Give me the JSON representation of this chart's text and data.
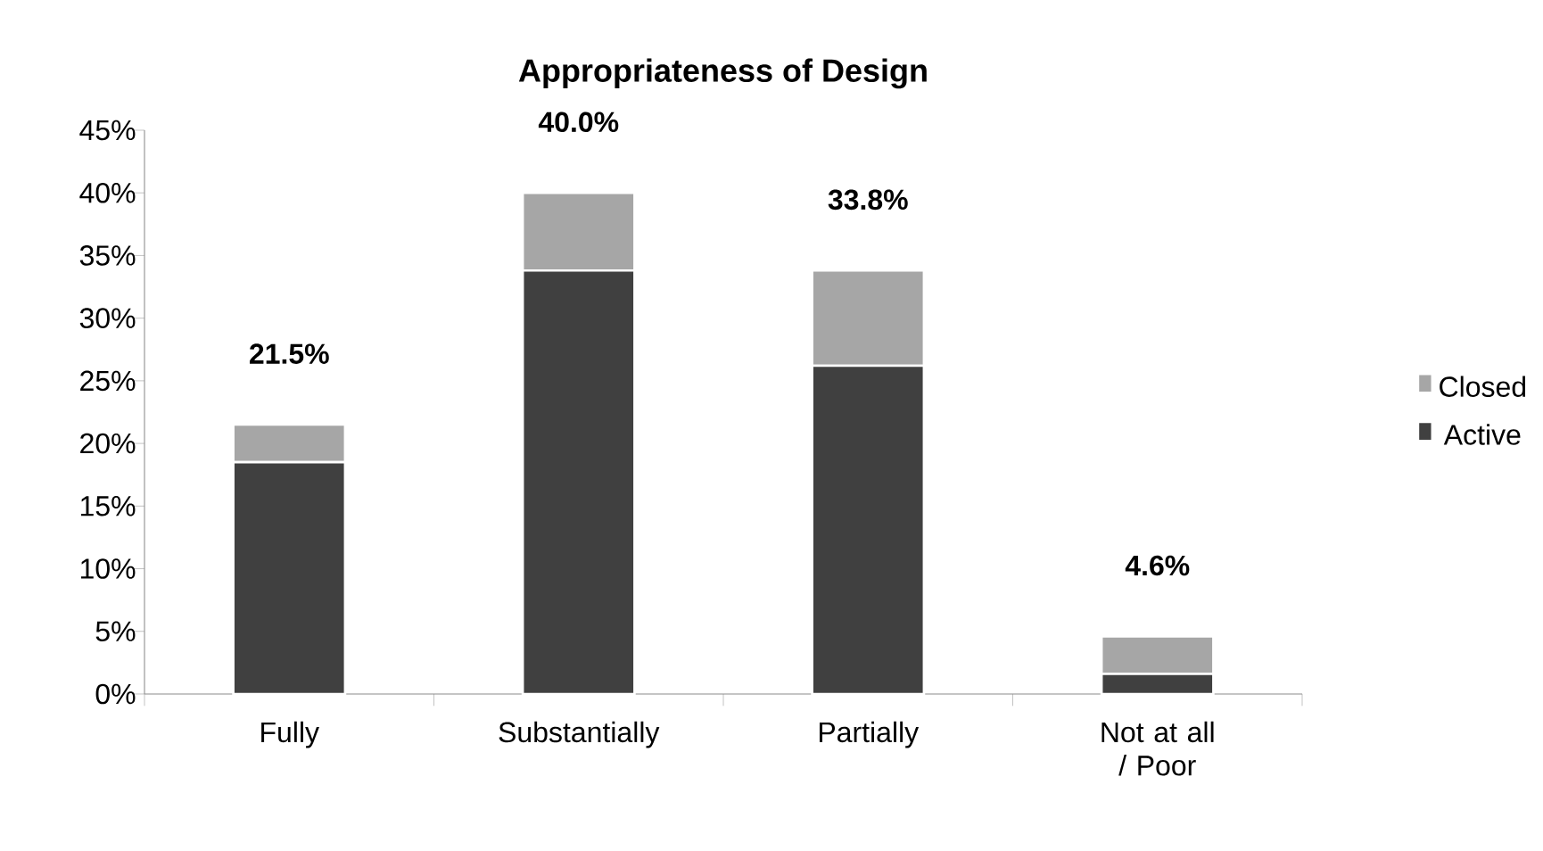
{
  "chart_data": {
    "type": "bar",
    "title": "Appropriateness of Design",
    "categories": [
      "Fully",
      "Substantially",
      "Partially",
      "Not at all / Poor"
    ],
    "series": [
      {
        "name": "Active",
        "color": "#404040",
        "values": [
          18.5,
          33.8,
          26.2,
          1.6
        ]
      },
      {
        "name": "Closed",
        "color": "#a6a6a6",
        "values": [
          3.0,
          6.2,
          7.6,
          3.0
        ]
      }
    ],
    "stacked": true,
    "totals": [
      "21.5%",
      "40.0%",
      "33.8%",
      "4.6%"
    ],
    "ylim": [
      0,
      45
    ],
    "yticks": [
      {
        "value": 0,
        "label": "0%"
      },
      {
        "value": 5,
        "label": "5%"
      },
      {
        "value": 10,
        "label": "10%"
      },
      {
        "value": 15,
        "label": "15%"
      },
      {
        "value": 20,
        "label": "20%"
      },
      {
        "value": 25,
        "label": "25%"
      },
      {
        "value": 30,
        "label": "30%"
      },
      {
        "value": 35,
        "label": "35%"
      },
      {
        "value": 40,
        "label": "40%"
      },
      {
        "value": 45,
        "label": "45%"
      }
    ],
    "grid": false,
    "legend": "right"
  }
}
